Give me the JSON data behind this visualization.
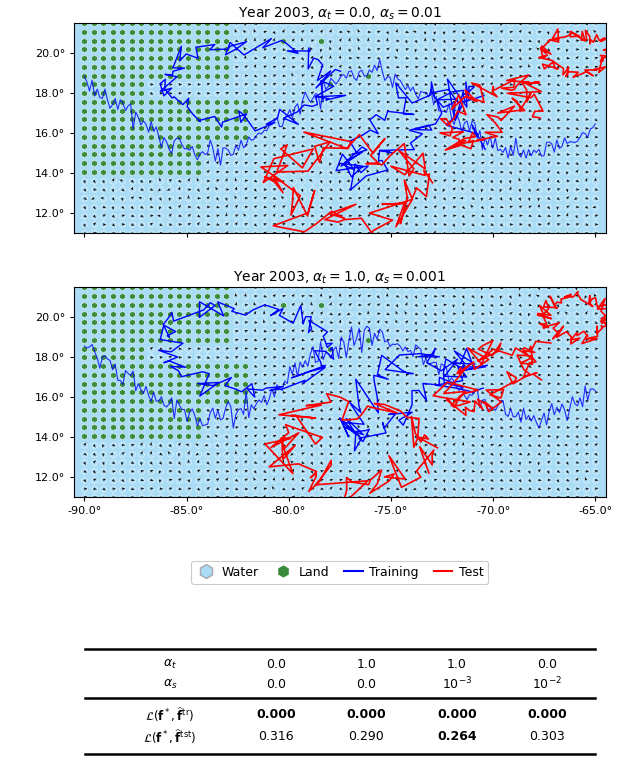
{
  "title1": "Year 2003, $\\alpha_t = 0.0$, $\\alpha_s = 0.01$",
  "title2": "Year 2003, $\\alpha_t = 1.0$, $\\alpha_s = 0.001$",
  "xlim": [
    -90.5,
    -64.5
  ],
  "ylim": [
    11.0,
    21.5
  ],
  "xticks": [
    -90.0,
    -85.0,
    -80.0,
    -75.0,
    -70.0,
    -65.0
  ],
  "yticks": [
    12.0,
    14.0,
    16.0,
    18.0,
    20.0
  ],
  "water_color": "#aadcf5",
  "land_color": "#3a8c3a",
  "arrow_color": "#111111",
  "training_color": "blue",
  "test_color": "red",
  "background_color": "#ffffff",
  "legend_water_color": "#aadcf5",
  "legend_land_color": "#3a8c3a",
  "table_alpha_t": [
    "0.0",
    "1.0",
    "1.0",
    "0.0"
  ],
  "table_alpha_s": [
    "0.0",
    "0.0",
    "$10^{-3}$",
    "$10^{-2}$"
  ],
  "table_train_loss_vals": [
    "0.000",
    "0.000",
    "0.000",
    "0.000"
  ],
  "table_test_loss_vals": [
    "0.316",
    "0.290",
    "0.264",
    "0.303"
  ],
  "table_test_bold": [
    false,
    false,
    true,
    false
  ]
}
